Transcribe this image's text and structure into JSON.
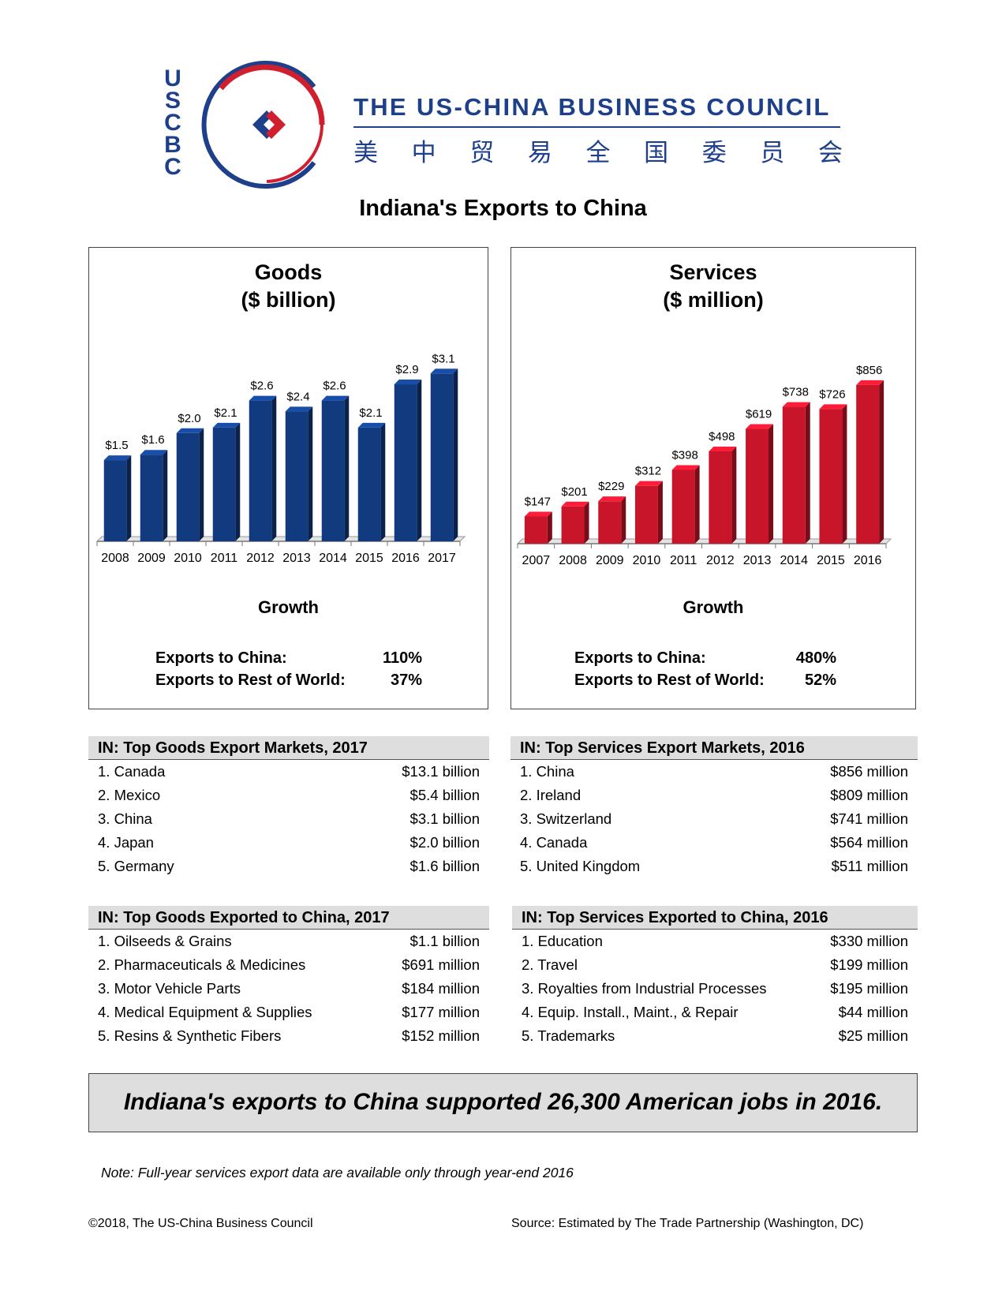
{
  "header": {
    "logo_letters": [
      "U",
      "S",
      "C",
      "B",
      "C"
    ],
    "org_name": "THE US-CHINA BUSINESS COUNCIL",
    "org_name_cn": [
      "美",
      "中",
      "贸",
      "易",
      "全",
      "国",
      "委",
      "员",
      "会"
    ],
    "colors": {
      "navy": "#1e3f8a",
      "red": "#d0202f"
    }
  },
  "title": "Indiana's Exports to China",
  "goods_panel": {
    "title_line1": "Goods",
    "title_line2": "($ billion)",
    "growth_title": "Growth",
    "growth": [
      {
        "label": "Exports to China:",
        "value": "110%"
      },
      {
        "label": "Exports to Rest of World:",
        "value": "37%"
      }
    ]
  },
  "services_panel": {
    "title_line1": "Services",
    "title_line2": "($ million)",
    "growth_title": "Growth",
    "growth": [
      {
        "label": "Exports to China:",
        "value": "480%"
      },
      {
        "label": "Exports to Rest of World:",
        "value": "52%"
      }
    ]
  },
  "chart_data": [
    {
      "type": "bar",
      "title": "Goods ($ billion)",
      "categories": [
        "2008",
        "2009",
        "2010",
        "2011",
        "2012",
        "2013",
        "2014",
        "2015",
        "2016",
        "2017"
      ],
      "values": [
        1.5,
        1.6,
        2.0,
        2.1,
        2.6,
        2.4,
        2.6,
        2.1,
        2.9,
        3.1
      ],
      "data_labels": [
        "$1.5",
        "$1.6",
        "$2.0",
        "$2.1",
        "$2.6",
        "$2.4",
        "$2.6",
        "$2.1",
        "$2.9",
        "$3.1"
      ],
      "ylim": [
        0,
        3.6
      ],
      "color": "#123a7f",
      "grid": false
    },
    {
      "type": "bar",
      "title": "Services ($ million)",
      "categories": [
        "2007",
        "2008",
        "2009",
        "2010",
        "2011",
        "2012",
        "2013",
        "2014",
        "2015",
        "2016"
      ],
      "values": [
        147,
        201,
        229,
        312,
        398,
        498,
        619,
        738,
        726,
        856
      ],
      "data_labels": [
        "$147",
        "$201",
        "$229",
        "$312",
        "$398",
        "$498",
        "$619",
        "$738",
        "$726",
        "$856"
      ],
      "ylim": [
        0,
        1000
      ],
      "color": "#c8152a",
      "grid": false
    }
  ],
  "tables": {
    "goods_markets": {
      "title": "IN: Top Goods Export Markets, 2017",
      "rows": [
        {
          "label": "1. Canada",
          "value": "$13.1 billion"
        },
        {
          "label": "2. Mexico",
          "value": "$5.4 billion"
        },
        {
          "label": "3. China",
          "value": "$3.1 billion"
        },
        {
          "label": "4. Japan",
          "value": "$2.0 billion"
        },
        {
          "label": "5. Germany",
          "value": "$1.6 billion"
        }
      ]
    },
    "services_markets": {
      "title": "IN: Top Services Export Markets, 2016",
      "rows": [
        {
          "label": "1. China",
          "value": "$856 million"
        },
        {
          "label": "2. Ireland",
          "value": "$809 million"
        },
        {
          "label": "3. Switzerland",
          "value": "$741 million"
        },
        {
          "label": "4. Canada",
          "value": "$564 million"
        },
        {
          "label": "5. United Kingdom",
          "value": "$511 million"
        }
      ]
    },
    "goods_to_china": {
      "title": "IN: Top Goods Exported to China, 2017",
      "rows": [
        {
          "label": "1. Oilseeds & Grains",
          "value": "$1.1 billion"
        },
        {
          "label": "2. Pharmaceuticals & Medicines",
          "value": "$691 million"
        },
        {
          "label": "3. Motor Vehicle Parts",
          "value": "$184 million"
        },
        {
          "label": "4. Medical Equipment & Supplies",
          "value": "$177 million"
        },
        {
          "label": "5. Resins & Synthetic Fibers",
          "value": "$152 million"
        }
      ]
    },
    "services_to_china": {
      "title": "IN: Top Services Exported to China, 2016",
      "rows": [
        {
          "label": "1. Education",
          "value": "$330 million"
        },
        {
          "label": "2. Travel",
          "value": "$199 million"
        },
        {
          "label": "3. Royalties from Industrial Processes",
          "value": "$195 million"
        },
        {
          "label": "4. Equip. Install., Maint., & Repair",
          "value": "$44 million"
        },
        {
          "label": "5. Trademarks",
          "value": "$25 million"
        }
      ]
    }
  },
  "jobs_statement": "Indiana's exports to China supported 26,300 American jobs in 2016.",
  "note": "Note: Full-year services export data are available only through year-end 2016",
  "footer": {
    "copyright": "©2018, The US-China Business Council",
    "source": "Source: Estimated by The Trade Partnership (Washington, DC)"
  }
}
